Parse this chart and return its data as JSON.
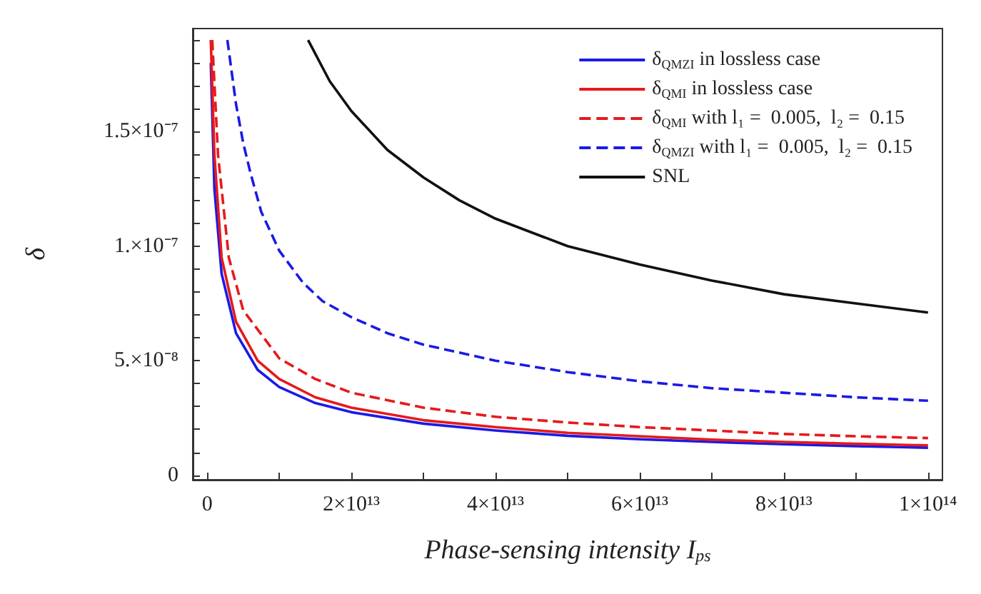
{
  "chart_data": {
    "type": "line",
    "xlabel": "Phase-sensing intensity I$_{ps}$",
    "ylabel": "δ",
    "xlim": [
      -2000000000000.0,
      102000000000000.0
    ],
    "ylim": [
      -2e-09,
      1.95e-07
    ],
    "xticks": [
      0,
      {
        "value": 10000000000000.0,
        "label": null
      },
      {
        "value": 20000000000000.0,
        "label": "2×10¹³"
      },
      {
        "value": 30000000000000.0,
        "label": null
      },
      {
        "value": 40000000000000.0,
        "label": "4×10¹³"
      },
      {
        "value": 50000000000000.0,
        "label": null
      },
      {
        "value": 60000000000000.0,
        "label": "6×10¹³"
      },
      {
        "value": 70000000000000.0,
        "label": null
      },
      {
        "value": 80000000000000.0,
        "label": "8×10¹³"
      },
      {
        "value": 90000000000000.0,
        "label": null
      },
      {
        "value": 100000000000000.0,
        "label": "1×10¹⁴"
      }
    ],
    "yticks": [
      0,
      {
        "value": 1e-08,
        "label": null
      },
      {
        "value": 2e-08,
        "label": null
      },
      {
        "value": 3e-08,
        "label": null
      },
      {
        "value": 4e-08,
        "label": null
      },
      {
        "value": 5e-08,
        "label": "5.×10⁻⁸"
      },
      {
        "value": 6e-08,
        "label": null
      },
      {
        "value": 7e-08,
        "label": null
      },
      {
        "value": 8e-08,
        "label": null
      },
      {
        "value": 9e-08,
        "label": null
      },
      {
        "value": 1e-07,
        "label": "1.×10⁻⁷"
      },
      {
        "value": 1.1e-07,
        "label": null
      },
      {
        "value": 1.2e-07,
        "label": null
      },
      {
        "value": 1.3e-07,
        "label": null
      },
      {
        "value": 1.4e-07,
        "label": null
      },
      {
        "value": 1.5e-07,
        "label": "1.5×10⁻⁷"
      },
      {
        "value": 1.6e-07,
        "label": null
      },
      {
        "value": 1.7e-07,
        "label": null
      },
      {
        "value": 1.8e-07,
        "label": null
      },
      {
        "value": 1.9e-07,
        "label": null
      }
    ],
    "grid": false,
    "legend": "top right",
    "marker": "none",
    "series": [
      {
        "name": "δ$_{QMZI}$ in lossless case",
        "color": "#1a1ae6",
        "line_style": "solid",
        "x": [
          500000000000.0,
          1000000000000.0,
          2000000000000.0,
          4000000000000.0,
          7000000000000.0,
          10000000000000.0,
          15000000000000.0,
          20000000000000.0,
          30000000000000.0,
          40000000000000.0,
          50000000000000.0,
          60000000000000.0,
          70000000000000.0,
          80000000000000.0,
          90000000000000.0,
          100000000000000.0
        ],
        "values": [
          1.8e-07,
          1.25e-07,
          8.8e-08,
          6.2e-08,
          4.6e-08,
          3.85e-08,
          3.15e-08,
          2.75e-08,
          2.25e-08,
          1.95e-08,
          1.72e-08,
          1.57e-08,
          1.45e-08,
          1.35e-08,
          1.27e-08,
          1.2e-08
        ]
      },
      {
        "name": "δ$_{QMI}$ in lossless case",
        "color": "#e61a1a",
        "line_style": "solid",
        "x": [
          500000000000.0,
          1000000000000.0,
          2000000000000.0,
          4000000000000.0,
          7000000000000.0,
          10000000000000.0,
          15000000000000.0,
          20000000000000.0,
          30000000000000.0,
          40000000000000.0,
          50000000000000.0,
          60000000000000.0,
          70000000000000.0,
          80000000000000.0,
          90000000000000.0,
          100000000000000.0
        ],
        "values": [
          1.9e-07,
          1.4e-07,
          9.5e-08,
          6.7e-08,
          5e-08,
          4.2e-08,
          3.4e-08,
          2.95e-08,
          2.4e-08,
          2.1e-08,
          1.85e-08,
          1.7e-08,
          1.55e-08,
          1.45e-08,
          1.37e-08,
          1.3e-08
        ]
      },
      {
        "name": "δ$_{QMI}$ with l₁ =  0.005,  l₂ =  0.15",
        "color": "#e61a1a",
        "line_style": "dashed",
        "x": [
          700000000000.0,
          1500000000000.0,
          3000000000000.0,
          5000000000000.0,
          10000000000000.0,
          15000000000000.0,
          20000000000000.0,
          30000000000000.0,
          40000000000000.0,
          50000000000000.0,
          60000000000000.0,
          70000000000000.0,
          80000000000000.0,
          90000000000000.0,
          100000000000000.0
        ],
        "values": [
          1.9e-07,
          1.4e-07,
          9.5e-08,
          7.2e-08,
          5.1e-08,
          4.2e-08,
          3.6e-08,
          2.95e-08,
          2.55e-08,
          2.3e-08,
          2.1e-08,
          1.95e-08,
          1.8e-08,
          1.7e-08,
          1.62e-08
        ]
      },
      {
        "name": "δ$_{QMZI}$ with l₁ =  0.005,  l₂ =  0.15",
        "color": "#1a1ae6",
        "line_style": "dashed",
        "x": [
          2800000000000.0,
          4000000000000.0,
          5000000000000.0,
          6000000000000.0,
          7500000000000.0,
          10000000000000.0,
          13300000000000.0,
          16000000000000.0,
          20000000000000.0,
          25000000000000.0,
          30000000000000.0,
          40000000000000.0,
          50000000000000.0,
          60000000000000.0,
          70000000000000.0,
          80000000000000.0,
          90000000000000.0,
          100000000000000.0
        ],
        "values": [
          1.9e-07,
          1.62e-07,
          1.45e-07,
          1.32e-07,
          1.15e-07,
          9.8e-08,
          8.4e-08,
          7.6e-08,
          6.9e-08,
          6.2e-08,
          5.7e-08,
          5e-08,
          4.5e-08,
          4.1e-08,
          3.8e-08,
          3.6e-08,
          3.4e-08,
          3.25e-08
        ]
      },
      {
        "name": "SNL",
        "color": "#111111",
        "line_style": "solid",
        "x": [
          14000000000000.0,
          17000000000000.0,
          20000000000000.0,
          25000000000000.0,
          30000000000000.0,
          35000000000000.0,
          40000000000000.0,
          50000000000000.0,
          60000000000000.0,
          70000000000000.0,
          80000000000000.0,
          90000000000000.0,
          100000000000000.0
        ],
        "values": [
          1.9e-07,
          1.72e-07,
          1.59e-07,
          1.42e-07,
          1.3e-07,
          1.2e-07,
          1.12e-07,
          1e-07,
          9.2e-08,
          8.5e-08,
          7.9e-08,
          7.5e-08,
          7.1e-08
        ]
      }
    ]
  }
}
